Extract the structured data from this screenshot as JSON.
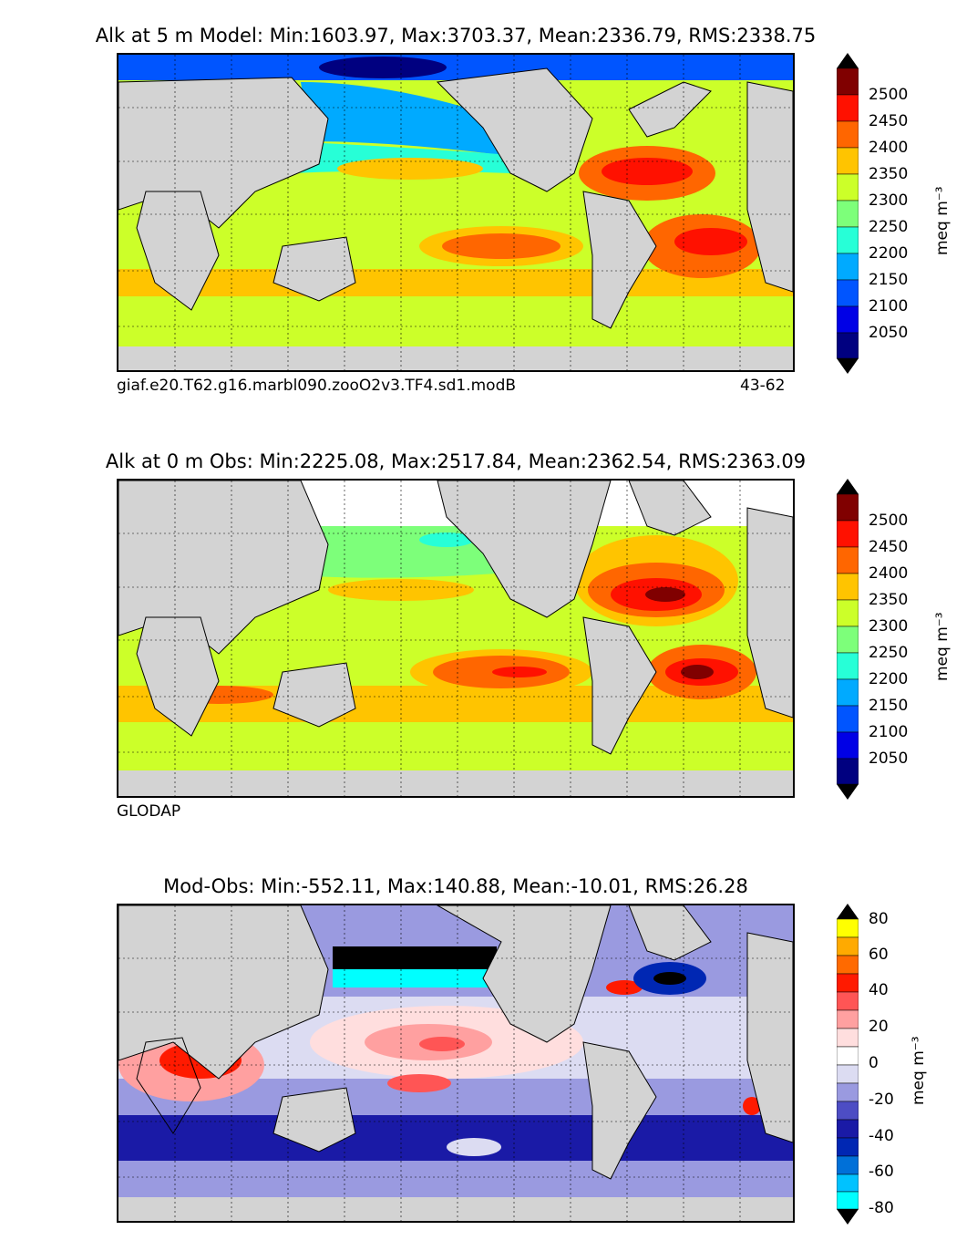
{
  "panels": [
    {
      "title": "Alk at 5 m Model: Min:1603.97, Max:3703.37, Mean:2336.79, RMS:2338.75",
      "caption_left": "giaf.e20.T62.g16.marbl090.zooO2v3.TF4.sd1.modB",
      "caption_right": "43-62",
      "colorbar_ticks": [
        "2500",
        "2450",
        "2400",
        "2350",
        "2300",
        "2250",
        "2200",
        "2150",
        "2100",
        "2050"
      ],
      "colorbar_unit": "meq m⁻³",
      "fill_value": 2320
    },
    {
      "title": "Alk at 0 m Obs: Min:2225.08, Max:2517.84, Mean:2362.54, RMS:2363.09",
      "caption_left": "GLODAP",
      "caption_right": "",
      "colorbar_ticks": [
        "2500",
        "2450",
        "2400",
        "2350",
        "2300",
        "2250",
        "2200",
        "2150",
        "2100",
        "2050"
      ],
      "colorbar_unit": "meq m⁻³",
      "fill_value": 2330
    },
    {
      "title": "Mod-Obs: Min:-552.11, Max:140.88, Mean:-10.01, RMS:26.28",
      "caption_left": "",
      "caption_right": "",
      "colorbar_ticks": [
        "80",
        "60",
        "40",
        "20",
        "0",
        "-20",
        "-40",
        "-60",
        "-80"
      ],
      "colorbar_unit": "meq m⁻³",
      "fill_value": -15
    }
  ],
  "colors": {
    "alk_scale": [
      "#000080",
      "#0000e6",
      "#0055ff",
      "#00aaff",
      "#27ffd7",
      "#7dff7a",
      "#ccff29",
      "#ffc400",
      "#ff6600",
      "#ff1100",
      "#800000"
    ],
    "diff_scale": [
      "#00ffff",
      "#00c2ff",
      "#0070d8",
      "#0027b3",
      "#1a1aa6",
      "#4d4dc4",
      "#9a9ae0",
      "#dcdcf2",
      "#ffdede",
      "#ffa0a0",
      "#ff5555",
      "#ff1a00",
      "#ff6a00",
      "#ffaa00",
      "#ffff00"
    ],
    "land": "#d3d3d3",
    "no_data": "#ffffff"
  }
}
